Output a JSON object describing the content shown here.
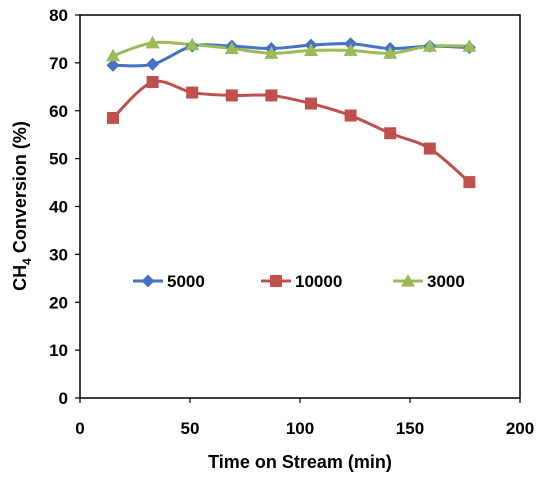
{
  "chart_data": {
    "type": "line",
    "xlabel": "Time on Stream (min)",
    "ylabel_main": "CH",
    "ylabel_sub": "4",
    "ylabel_rest": " Conversion (%)",
    "xlim": [
      0,
      200
    ],
    "ylim": [
      0,
      80
    ],
    "xticks": [
      0,
      50,
      100,
      150,
      200
    ],
    "yticks": [
      0,
      10,
      20,
      30,
      40,
      50,
      60,
      70,
      80
    ],
    "grid": false,
    "legend_position": "center-left inside",
    "series": [
      {
        "name": "5000",
        "color": "#4472C4",
        "marker": "diamond",
        "x": [
          15,
          33,
          51,
          69,
          87,
          105,
          123,
          141,
          159,
          177
        ],
        "y": [
          69.5,
          69.7,
          73.5,
          73.5,
          73.0,
          73.7,
          74.0,
          73.0,
          73.5,
          73.2
        ]
      },
      {
        "name": "10000",
        "color": "#C0504D",
        "marker": "square",
        "x": [
          15,
          33,
          51,
          69,
          87,
          105,
          123,
          141,
          159,
          177
        ],
        "y": [
          58.5,
          66.0,
          63.8,
          63.2,
          63.2,
          61.5,
          59.0,
          55.3,
          52.1,
          45.1
        ]
      },
      {
        "name": "3000",
        "color": "#9BBB59",
        "marker": "triangle",
        "x": [
          15,
          33,
          51,
          69,
          87,
          105,
          123,
          141,
          159,
          177
        ],
        "y": [
          71.5,
          74.2,
          73.8,
          73.0,
          72.0,
          72.6,
          72.6,
          72.0,
          73.5,
          73.5
        ]
      }
    ]
  }
}
